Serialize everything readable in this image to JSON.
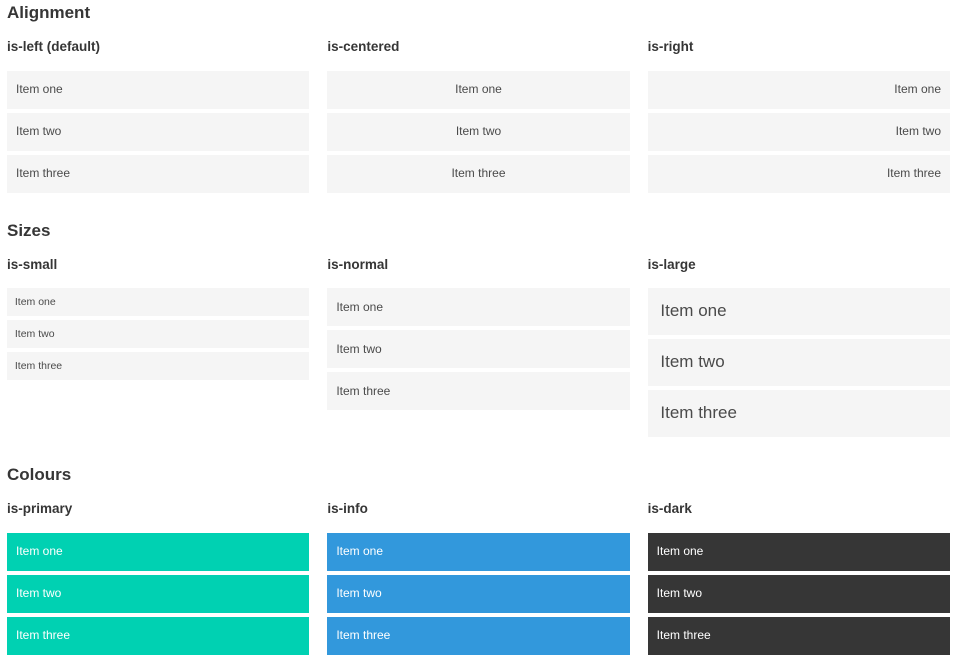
{
  "colors": {
    "primary": "#00d1b2",
    "info": "#3298dc",
    "dark": "#363636",
    "item_bg": "#f5f5f5",
    "item_text": "#4a4a4a",
    "heading": "#363636",
    "on_color_text": "#ffffff"
  },
  "sections": [
    {
      "title": "Alignment",
      "columns": [
        {
          "label": "is-left (default)",
          "items": [
            "Item one",
            "Item two",
            "Item three"
          ]
        },
        {
          "label": "is-centered",
          "items": [
            "Item one",
            "Item two",
            "Item three"
          ]
        },
        {
          "label": "is-right",
          "items": [
            "Item one",
            "Item two",
            "Item three"
          ]
        }
      ]
    },
    {
      "title": "Sizes",
      "columns": [
        {
          "label": "is-small",
          "items": [
            "Item one",
            "Item two",
            "Item three"
          ]
        },
        {
          "label": "is-normal",
          "items": [
            "Item one",
            "Item two",
            "Item three"
          ]
        },
        {
          "label": "is-large",
          "items": [
            "Item one",
            "Item two",
            "Item three"
          ]
        }
      ]
    },
    {
      "title": "Colours",
      "columns": [
        {
          "label": "is-primary",
          "items": [
            "Item one",
            "Item two",
            "Item three"
          ]
        },
        {
          "label": "is-info",
          "items": [
            "Item one",
            "Item two",
            "Item three"
          ]
        },
        {
          "label": "is-dark",
          "items": [
            "Item one",
            "Item two",
            "Item three"
          ]
        }
      ]
    }
  ]
}
